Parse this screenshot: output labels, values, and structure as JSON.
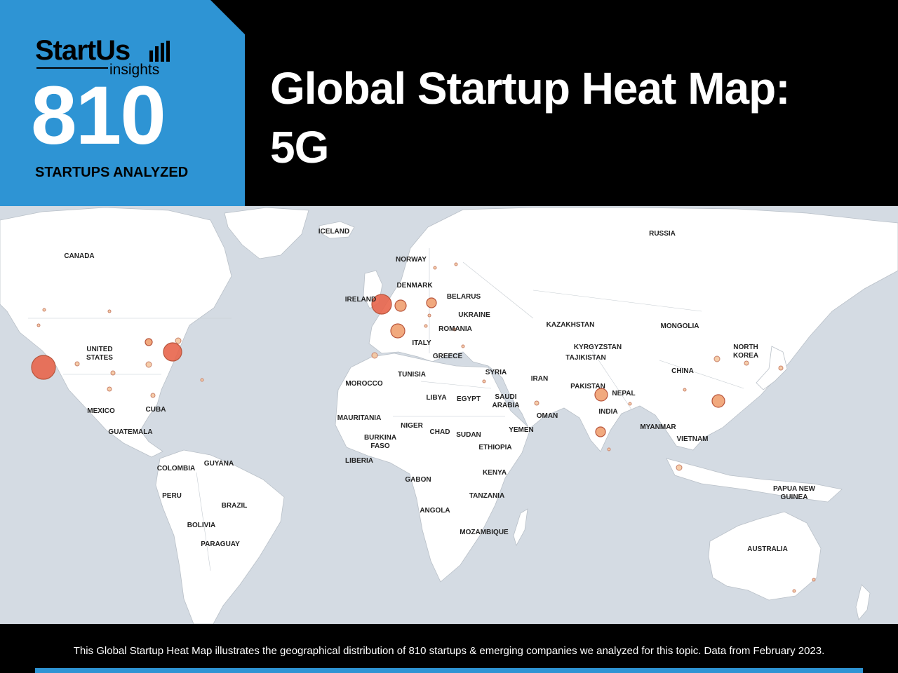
{
  "brand": {
    "name": "StartUs",
    "sub": "insights"
  },
  "stats": {
    "count": "810",
    "label": "STARTUPS ANALYZED"
  },
  "title": {
    "line1": "Global Startup Heat Map:",
    "line2": "5G"
  },
  "footer": {
    "text": "This Global Startup Heat Map illustrates the geographical distribution of 810 startups & emerging companies we analyzed for this topic. Data from February 2023."
  },
  "colors": {
    "header_bg": "#000000",
    "accent": "#2e94d4",
    "ocean": "#d4dbe3",
    "land": "#ffffff",
    "dot_high": "#e8654b",
    "dot_mid": "#f0a070",
    "dot_low": "#f5c8a0"
  },
  "map_labels": [
    "CANADA",
    "UNITED\nSTATES",
    "MEXICO",
    "CUBA",
    "GUATEMALA",
    "COLOMBIA",
    "GUYANA",
    "PERU",
    "BRAZIL",
    "BOLIVIA",
    "PARAGUAY",
    "ICELAND",
    "NORWAY",
    "DENMARK",
    "IRELAND",
    "BELARUS",
    "UKRAINE",
    "ROMANIA",
    "ITALY",
    "GREECE",
    "TUNISIA",
    "MOROCCO",
    "LIBYA",
    "EGYPT",
    "SYRIA",
    "SAUDI\nARABIA",
    "OMAN",
    "YEMEN",
    "MAURITANIA",
    "NIGER",
    "CHAD",
    "SUDAN",
    "BURKINA\nFASO",
    "LIBERIA",
    "ETHIOPIA",
    "KENYA",
    "GABON",
    "TANZANIA",
    "ANGOLA",
    "MOZAMBIQUE",
    "RUSSIA",
    "KAZAKHSTAN",
    "MONGOLIA",
    "KYRGYZSTAN",
    "TAJIKISTAN",
    "IRAN",
    "PAKISTAN",
    "NEPAL",
    "INDIA",
    "CHINA",
    "NORTH\nKOREA",
    "MYANMAR",
    "VIETNAM",
    "PAPUA NEW\nGUINEA",
    "AUSTRALIA"
  ]
}
